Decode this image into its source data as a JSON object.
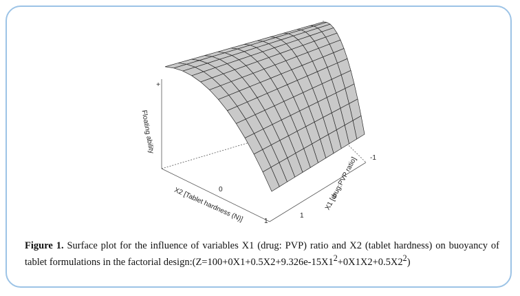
{
  "figure": {
    "plot": {
      "z_label": "Floating ability",
      "z_tick": "+",
      "x2_label": "X2 [Tablet hardness (N)]",
      "x2_ticks": [
        "0",
        "1"
      ],
      "x1_label": "X1 [drug:PVP ratio]",
      "x1_ticks": [
        "1",
        "0",
        "-1"
      ]
    },
    "caption": {
      "label": "Figure 1.",
      "text_1": " Surface plot for the influence of variables X1 (drug: PVP) ratio and X2 (tablet hardness) on buoyancy of tablet formulations in the factorial design:(Z=100+0X1+0.5X2+9.326e-15X1",
      "sup_1": "2",
      "text_2": "+0X1X2+0.5X2",
      "sup_2": "2",
      "text_3": ")"
    }
  }
}
